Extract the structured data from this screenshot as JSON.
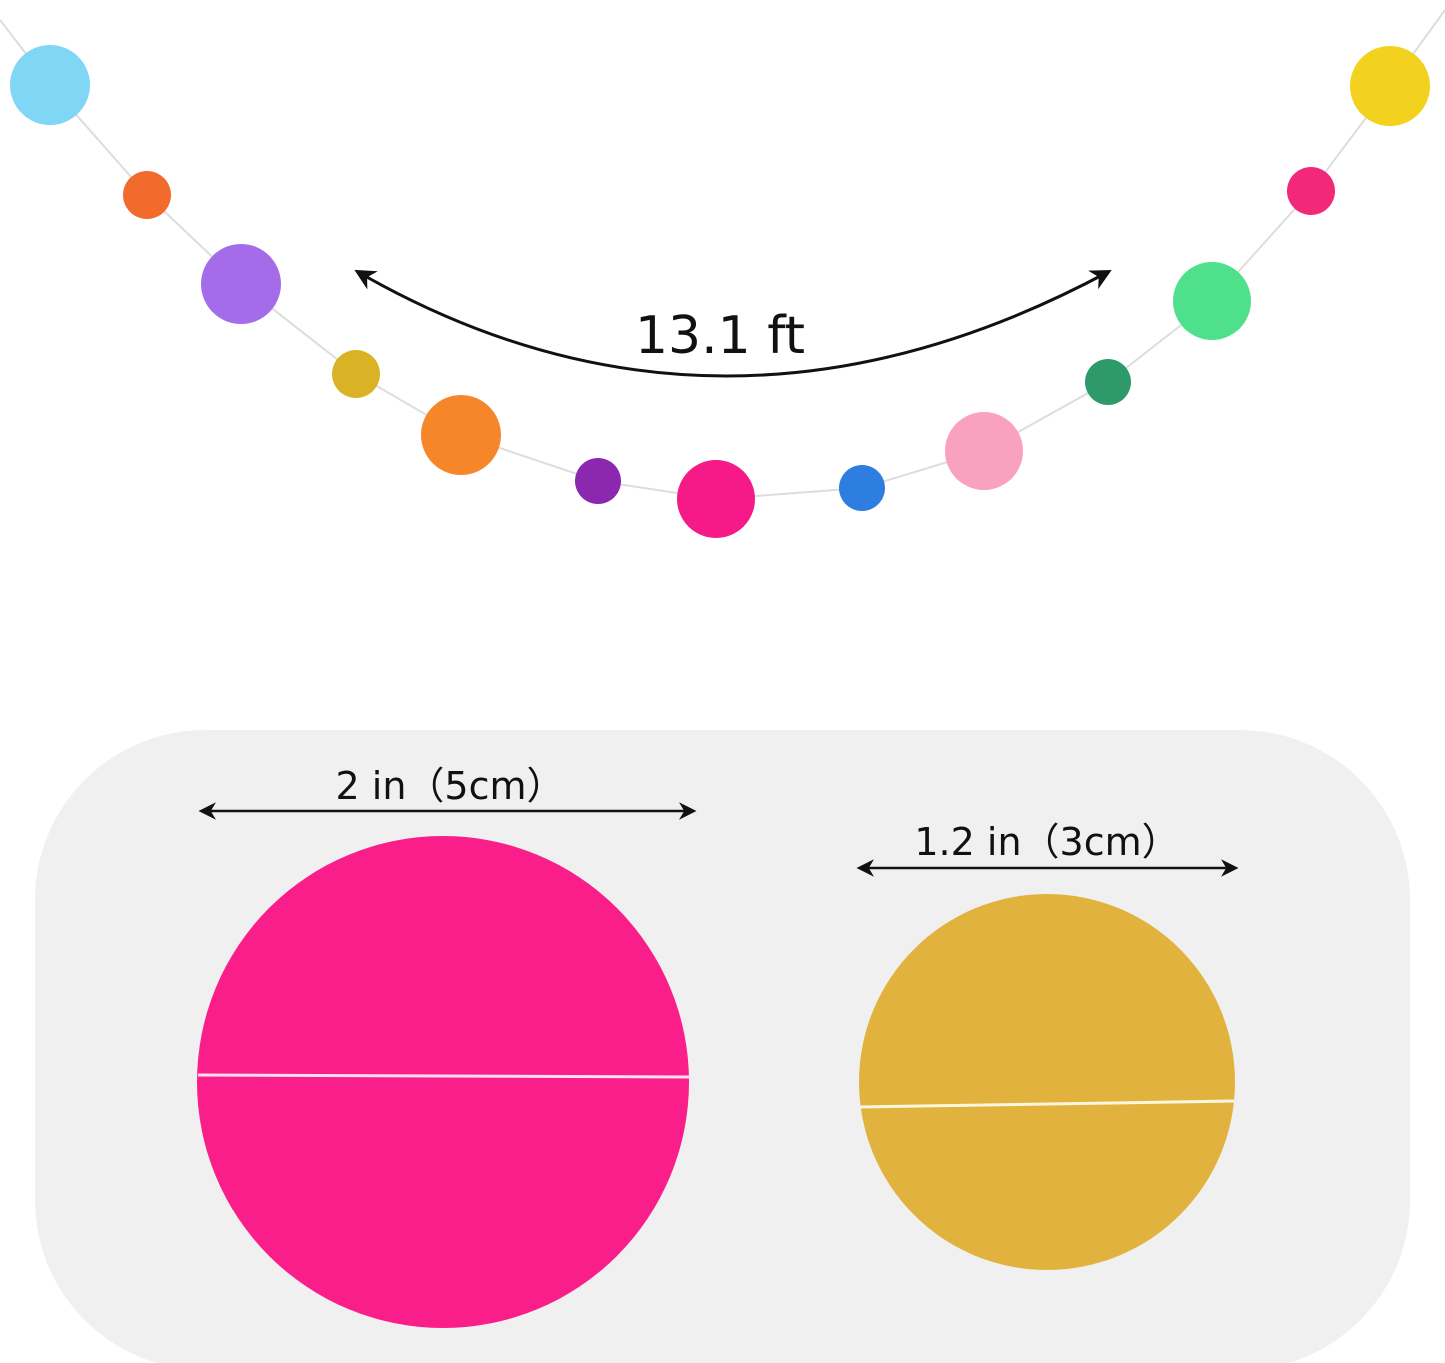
{
  "garland": {
    "length_label": "13.1 ft",
    "dot_colors": [
      "#7fd6f5",
      "#f26a2c",
      "#a46ce8",
      "#d9b226",
      "#f7862a",
      "#8c28b0",
      "#f51a88",
      "#2e7ee0",
      "#f9a2c0",
      "#2e9a6a",
      "#4ee08a",
      "#f2287a",
      "#f2d21e"
    ]
  },
  "sizes": {
    "large": {
      "label": "2 in（5cm）",
      "color": "#fa1e8a"
    },
    "small": {
      "label": "1.2 in（3cm）",
      "color": "#e2b23e"
    },
    "panel_color": "#f0f0f0"
  }
}
